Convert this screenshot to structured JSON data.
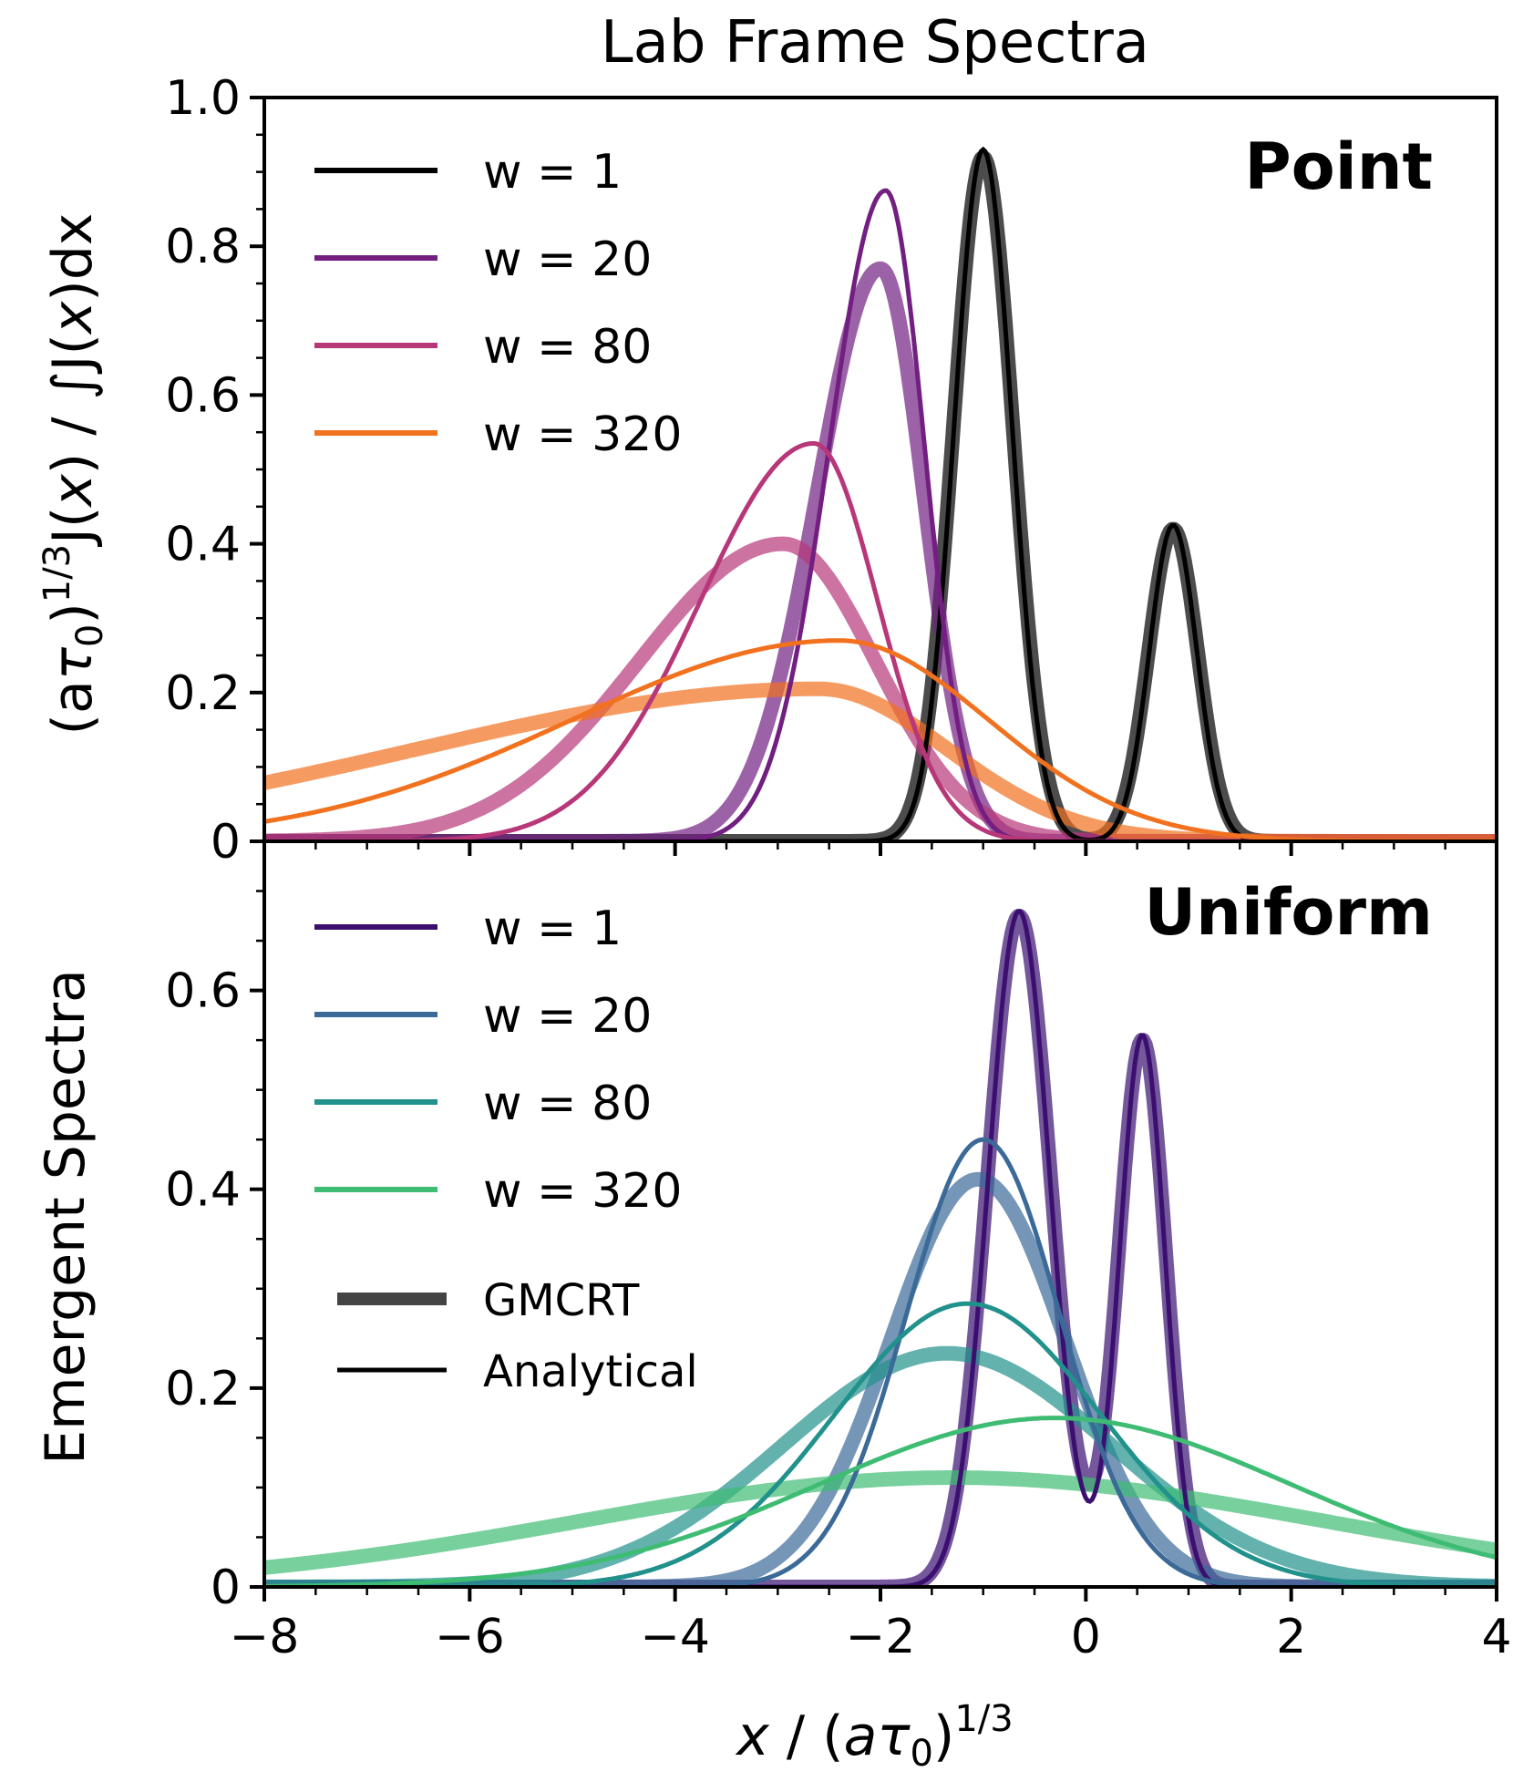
{
  "title": "Lab Frame Spectra",
  "ylabel_top": "(aτ₀)^{1/3} J(x) / ∫ J(x) dx",
  "ylabel_top_parts": {
    "open": "(a",
    "tau": "τ",
    "sub0": "0",
    "close": ")",
    "exp": "1/3",
    "J": "J(",
    "x": "x",
    "J2": ") / ",
    "integral": "∫",
    "J3": "J(",
    "x2": "x",
    "end": ")dx"
  },
  "ylabel_bottom": "Emergent Spectra",
  "xlabel_parts": {
    "x": "x",
    "slash": " / (",
    "a": "a",
    "tau": "τ",
    "sub0": "0",
    "close": ")",
    "exp": "1/3"
  },
  "legend_style": {
    "thick": "GMCRT",
    "thin": "Analytical"
  },
  "chart_data": [
    {
      "type": "line",
      "panel": "top",
      "panel_label": "Point",
      "xlim": [
        -8,
        4
      ],
      "ylim": [
        0,
        1.0
      ],
      "xticks": [
        -8,
        -6,
        -4,
        -2,
        0,
        2,
        4
      ],
      "xtick_labels": [
        "−8",
        "−6",
        "−4",
        "−2",
        "0",
        "2",
        "4"
      ],
      "yticks": [
        0,
        0.2,
        0.4,
        0.6,
        0.8,
        1.0
      ],
      "ytick_labels": [
        "0",
        "0.2",
        "0.4",
        "0.6",
        "0.8",
        "1.0"
      ],
      "series": [
        {
          "name": "w = 1",
          "color": "#000000",
          "analytical": {
            "peaks": [
              {
                "x": -1.0,
                "y": 0.93,
                "s": 0.28
              },
              {
                "x": 0.85,
                "y": 0.425,
                "s": 0.23
              }
            ]
          },
          "gmcrt": {
            "peaks": [
              {
                "x": -1.0,
                "y": 0.92,
                "s": 0.29
              },
              {
                "x": 0.85,
                "y": 0.42,
                "s": 0.24
              }
            ]
          }
        },
        {
          "name": "w = 20",
          "color": "#721f81",
          "analytical": {
            "peaks": [
              {
                "x": -1.95,
                "y": 0.875,
                "sl": 0.55,
                "sr": 0.38
              }
            ]
          },
          "gmcrt": {
            "peaks": [
              {
                "x": -2.0,
                "y": 0.77,
                "sl": 0.62,
                "sr": 0.42
              }
            ]
          }
        },
        {
          "name": "w = 80",
          "color": "#b73779",
          "analytical": {
            "peaks": [
              {
                "x": -2.65,
                "y": 0.535,
                "sl": 1.1,
                "sr": 0.62
              }
            ]
          },
          "gmcrt": {
            "peaks": [
              {
                "x": -2.95,
                "y": 0.4,
                "sl": 1.4,
                "sr": 0.9
              }
            ]
          }
        },
        {
          "name": "w = 320",
          "color": "#f1711f",
          "analytical": {
            "peaks": [
              {
                "x": -2.4,
                "y": 0.27,
                "sl": 2.6,
                "sr": 1.45
              }
            ]
          },
          "gmcrt": {
            "peaks": [
              {
                "x": -2.6,
                "y": 0.205,
                "sl": 3.9,
                "sr": 1.25
              }
            ]
          }
        }
      ]
    },
    {
      "type": "line",
      "panel": "bottom",
      "panel_label": "Uniform",
      "xlim": [
        -8,
        4
      ],
      "ylim": [
        0,
        0.75
      ],
      "xticks": [
        -8,
        -6,
        -4,
        -2,
        0,
        2,
        4
      ],
      "xtick_labels": [
        "−8",
        "−6",
        "−4",
        "−2",
        "0",
        "2",
        "4"
      ],
      "yticks": [
        0,
        0.2,
        0.4,
        0.6
      ],
      "ytick_labels": [
        "0",
        "0.2",
        "0.4",
        "0.6"
      ],
      "series": [
        {
          "name": "w = 1",
          "color": "#3b0f70",
          "analytical": {
            "peaks": [
              {
                "x": -0.65,
                "y": 0.68,
                "s": 0.3
              },
              {
                "x": 0.55,
                "y": 0.555,
                "s": 0.22
              }
            ]
          },
          "gmcrt": {
            "peaks": [
              {
                "x": -0.65,
                "y": 0.675,
                "s": 0.31
              },
              {
                "x": 0.55,
                "y": 0.55,
                "s": 0.23
              }
            ]
          }
        },
        {
          "name": "w = 20",
          "color": "#3b6a98",
          "analytical": {
            "peaks": [
              {
                "x": -1.0,
                "y": 0.45,
                "s": 0.75
              }
            ]
          },
          "gmcrt": {
            "peaks": [
              {
                "x": -1.05,
                "y": 0.41,
                "s": 0.85
              }
            ]
          }
        },
        {
          "name": "w = 80",
          "color": "#21918c",
          "analytical": {
            "peaks": [
              {
                "x": -1.15,
                "y": 0.285,
                "s": 1.3
              }
            ]
          },
          "gmcrt": {
            "peaks": [
              {
                "x": -1.35,
                "y": 0.235,
                "s": 1.6
              }
            ]
          }
        },
        {
          "name": "w = 320",
          "color": "#3fbc73",
          "analytical": {
            "peaks": [
              {
                "x": -0.3,
                "y": 0.17,
                "s": 2.3
              }
            ]
          },
          "gmcrt": {
            "peaks": [
              {
                "x": -1.3,
                "y": 0.11,
                "s": 3.6
              }
            ]
          }
        }
      ]
    }
  ]
}
